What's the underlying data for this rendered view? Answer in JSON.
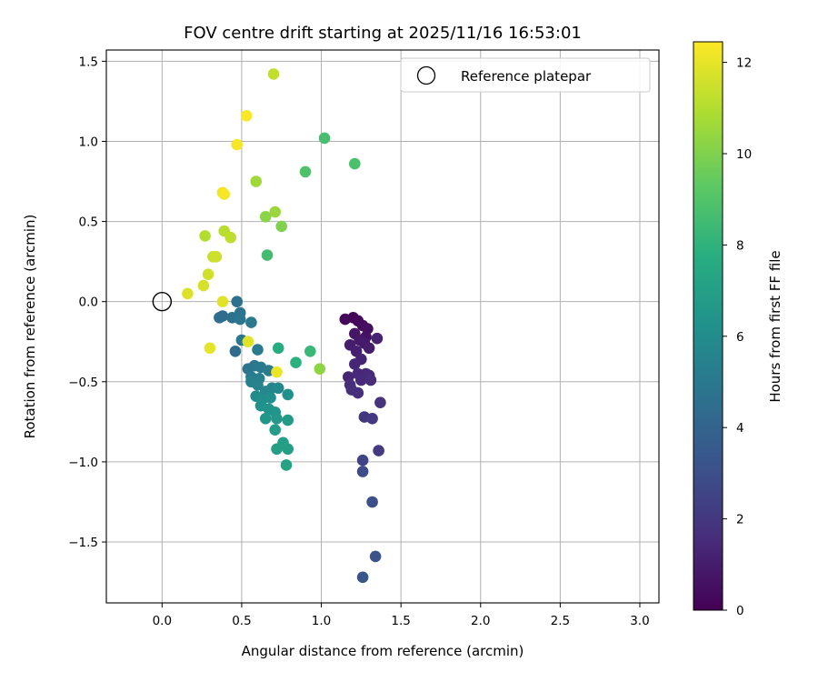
{
  "chart_data": {
    "type": "scatter",
    "title": "FOV centre drift starting at 2025/11/16 16:53:01",
    "xlabel": "Angular distance from reference (arcmin)",
    "ylabel": "Rotation from reference (arcmin)",
    "xlim": [
      -0.35,
      3.12
    ],
    "ylim": [
      -1.88,
      1.57
    ],
    "xticks": [
      0.0,
      0.5,
      1.0,
      1.5,
      2.0,
      2.5,
      3.0
    ],
    "xtick_labels": [
      "0.0",
      "0.5",
      "1.0",
      "1.5",
      "2.0",
      "2.5",
      "3.0"
    ],
    "yticks": [
      -1.5,
      -1.0,
      -0.5,
      0.0,
      0.5,
      1.0,
      1.5
    ],
    "ytick_labels": [
      "−1.5",
      "−1.0",
      "−0.5",
      "0.0",
      "0.5",
      "1.0",
      "1.5"
    ],
    "grid": true,
    "legend": {
      "position": "top-right",
      "label": "Reference platepar"
    },
    "reference_point": {
      "x": 0.0,
      "y": 0.0
    },
    "colorbar": {
      "label": "Hours from first FF file",
      "colormap": "viridis",
      "range": [
        0,
        12.45
      ],
      "ticks": [
        0,
        2,
        4,
        6,
        8,
        10,
        12
      ],
      "tick_labels": [
        "0",
        "2",
        "4",
        "6",
        "8",
        "10",
        "12"
      ]
    },
    "points": [
      {
        "x": 1.2,
        "y": -0.1,
        "t": 0.1
      },
      {
        "x": 1.23,
        "y": -0.12,
        "t": 0.2
      },
      {
        "x": 1.15,
        "y": -0.11,
        "t": 0.3
      },
      {
        "x": 1.26,
        "y": -0.15,
        "t": 0.4
      },
      {
        "x": 1.29,
        "y": -0.17,
        "t": 0.5
      },
      {
        "x": 1.28,
        "y": -0.22,
        "t": 0.6
      },
      {
        "x": 1.21,
        "y": -0.2,
        "t": 0.7
      },
      {
        "x": 1.24,
        "y": -0.24,
        "t": 0.8
      },
      {
        "x": 1.27,
        "y": -0.26,
        "t": 0.9
      },
      {
        "x": 1.18,
        "y": -0.27,
        "t": 1.0
      },
      {
        "x": 1.3,
        "y": -0.29,
        "t": 1.0
      },
      {
        "x": 1.22,
        "y": -0.31,
        "t": 1.1
      },
      {
        "x": 1.35,
        "y": -0.23,
        "t": 1.2
      },
      {
        "x": 1.25,
        "y": -0.36,
        "t": 1.2
      },
      {
        "x": 1.21,
        "y": -0.39,
        "t": 1.3
      },
      {
        "x": 1.17,
        "y": -0.47,
        "t": 1.3
      },
      {
        "x": 1.23,
        "y": -0.45,
        "t": 1.4
      },
      {
        "x": 1.28,
        "y": -0.45,
        "t": 1.4
      },
      {
        "x": 1.3,
        "y": -0.46,
        "t": 1.5
      },
      {
        "x": 1.25,
        "y": -0.49,
        "t": 1.5
      },
      {
        "x": 1.31,
        "y": -0.49,
        "t": 1.6
      },
      {
        "x": 1.18,
        "y": -0.52,
        "t": 1.6
      },
      {
        "x": 1.19,
        "y": -0.55,
        "t": 1.7
      },
      {
        "x": 1.23,
        "y": -0.57,
        "t": 1.7
      },
      {
        "x": 1.37,
        "y": -0.63,
        "t": 1.8
      },
      {
        "x": 1.27,
        "y": -0.72,
        "t": 1.9
      },
      {
        "x": 1.32,
        "y": -0.73,
        "t": 2.0
      },
      {
        "x": 1.36,
        "y": -0.93,
        "t": 2.1
      },
      {
        "x": 1.26,
        "y": -0.99,
        "t": 2.5
      },
      {
        "x": 1.26,
        "y": -1.06,
        "t": 2.8
      },
      {
        "x": 1.32,
        "y": -1.25,
        "t": 3.0
      },
      {
        "x": 1.34,
        "y": -1.59,
        "t": 3.2
      },
      {
        "x": 1.26,
        "y": -1.72,
        "t": 3.3
      },
      {
        "x": 0.47,
        "y": 0.0,
        "t": 4.6
      },
      {
        "x": 0.36,
        "y": -0.1,
        "t": 4.5
      },
      {
        "x": 0.38,
        "y": -0.09,
        "t": 4.4
      },
      {
        "x": 0.44,
        "y": -0.1,
        "t": 4.6
      },
      {
        "x": 0.49,
        "y": -0.07,
        "t": 4.7
      },
      {
        "x": 0.49,
        "y": -0.11,
        "t": 4.8
      },
      {
        "x": 0.56,
        "y": -0.13,
        "t": 5.0
      },
      {
        "x": 0.46,
        "y": -0.31,
        "t": 4.4
      },
      {
        "x": 0.5,
        "y": -0.24,
        "t": 4.9
      },
      {
        "x": 0.6,
        "y": -0.3,
        "t": 5.1
      },
      {
        "x": 0.54,
        "y": -0.42,
        "t": 4.8
      },
      {
        "x": 0.58,
        "y": -0.4,
        "t": 4.9
      },
      {
        "x": 0.62,
        "y": -0.41,
        "t": 5.0
      },
      {
        "x": 0.67,
        "y": -0.43,
        "t": 5.1
      },
      {
        "x": 0.56,
        "y": -0.47,
        "t": 5.2
      },
      {
        "x": 0.61,
        "y": -0.48,
        "t": 5.3
      },
      {
        "x": 0.56,
        "y": -0.5,
        "t": 5.4
      },
      {
        "x": 0.6,
        "y": -0.52,
        "t": 5.5
      },
      {
        "x": 0.69,
        "y": -0.54,
        "t": 5.6
      },
      {
        "x": 0.65,
        "y": -0.56,
        "t": 5.7
      },
      {
        "x": 0.73,
        "y": -0.54,
        "t": 5.8
      },
      {
        "x": 0.59,
        "y": -0.59,
        "t": 5.9
      },
      {
        "x": 0.63,
        "y": -0.61,
        "t": 6.0
      },
      {
        "x": 0.68,
        "y": -0.6,
        "t": 6.1
      },
      {
        "x": 0.79,
        "y": -0.58,
        "t": 6.2
      },
      {
        "x": 0.62,
        "y": -0.65,
        "t": 6.3
      },
      {
        "x": 0.67,
        "y": -0.67,
        "t": 6.4
      },
      {
        "x": 0.71,
        "y": -0.69,
        "t": 6.5
      },
      {
        "x": 0.65,
        "y": -0.73,
        "t": 6.5
      },
      {
        "x": 0.72,
        "y": -0.73,
        "t": 6.6
      },
      {
        "x": 0.79,
        "y": -0.74,
        "t": 6.7
      },
      {
        "x": 0.71,
        "y": -0.8,
        "t": 6.8
      },
      {
        "x": 0.76,
        "y": -0.88,
        "t": 6.9
      },
      {
        "x": 0.72,
        "y": -0.92,
        "t": 7.0
      },
      {
        "x": 0.79,
        "y": -0.92,
        "t": 7.0
      },
      {
        "x": 0.78,
        "y": -1.02,
        "t": 7.2
      },
      {
        "x": 0.73,
        "y": -0.29,
        "t": 7.6
      },
      {
        "x": 0.84,
        "y": -0.38,
        "t": 7.9
      },
      {
        "x": 0.93,
        "y": -0.31,
        "t": 8.3
      },
      {
        "x": 0.66,
        "y": 0.29,
        "t": 8.6
      },
      {
        "x": 1.02,
        "y": 1.02,
        "t": 8.7
      },
      {
        "x": 0.9,
        "y": 0.81,
        "t": 8.9
      },
      {
        "x": 1.21,
        "y": 0.86,
        "t": 8.8
      },
      {
        "x": 0.99,
        "y": -0.42,
        "t": 10.3
      },
      {
        "x": 0.75,
        "y": 0.47,
        "t": 10.0
      },
      {
        "x": 0.65,
        "y": 0.53,
        "t": 10.2
      },
      {
        "x": 0.71,
        "y": 0.56,
        "t": 10.5
      },
      {
        "x": 0.59,
        "y": 0.75,
        "t": 10.6
      },
      {
        "x": 0.7,
        "y": 1.42,
        "t": 11.3
      },
      {
        "x": 0.27,
        "y": 0.41,
        "t": 11.0
      },
      {
        "x": 0.39,
        "y": 0.44,
        "t": 11.1
      },
      {
        "x": 0.43,
        "y": 0.4,
        "t": 11.2
      },
      {
        "x": 0.32,
        "y": 0.28,
        "t": 11.4
      },
      {
        "x": 0.34,
        "y": 0.28,
        "t": 11.5
      },
      {
        "x": 0.29,
        "y": 0.17,
        "t": 11.6
      },
      {
        "x": 0.26,
        "y": 0.1,
        "t": 11.7
      },
      {
        "x": 0.16,
        "y": 0.05,
        "t": 11.8
      },
      {
        "x": 0.38,
        "y": 0.0,
        "t": 11.9
      },
      {
        "x": 0.3,
        "y": -0.29,
        "t": 12.0
      },
      {
        "x": 0.54,
        "y": -0.25,
        "t": 11.9
      },
      {
        "x": 0.72,
        "y": -0.44,
        "t": 12.1
      },
      {
        "x": 0.38,
        "y": 0.68,
        "t": 12.2
      },
      {
        "x": 0.39,
        "y": 0.67,
        "t": 12.3
      },
      {
        "x": 0.47,
        "y": 0.98,
        "t": 12.3
      },
      {
        "x": 0.53,
        "y": 1.16,
        "t": 12.4
      }
    ]
  }
}
